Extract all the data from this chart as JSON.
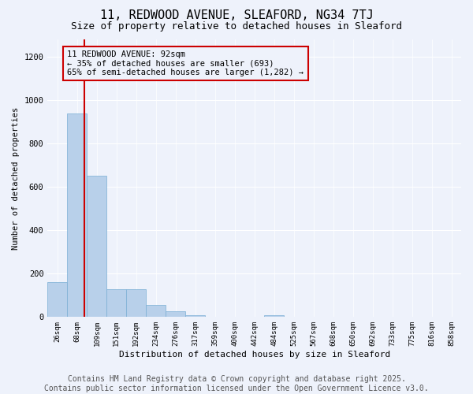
{
  "title": "11, REDWOOD AVENUE, SLEAFORD, NG34 7TJ",
  "subtitle": "Size of property relative to detached houses in Sleaford",
  "xlabel": "Distribution of detached houses by size in Sleaford",
  "ylabel": "Number of detached properties",
  "bin_labels": [
    "26sqm",
    "68sqm",
    "109sqm",
    "151sqm",
    "192sqm",
    "234sqm",
    "276sqm",
    "317sqm",
    "359sqm",
    "400sqm",
    "442sqm",
    "484sqm",
    "525sqm",
    "567sqm",
    "608sqm",
    "650sqm",
    "692sqm",
    "733sqm",
    "775sqm",
    "816sqm",
    "858sqm"
  ],
  "bar_values": [
    160,
    940,
    650,
    130,
    130,
    55,
    25,
    10,
    0,
    0,
    0,
    10,
    0,
    0,
    0,
    0,
    0,
    0,
    0,
    0,
    0
  ],
  "bar_color": "#b8d0ea",
  "bar_edgecolor": "#7aafd4",
  "vline_x": 1.35,
  "vline_color": "#cc0000",
  "annotation_text": "11 REDWOOD AVENUE: 92sqm\n← 35% of detached houses are smaller (693)\n65% of semi-detached houses are larger (1,282) →",
  "annotation_box_edgecolor": "#cc0000",
  "annotation_fontsize": 7.5,
  "ylim": [
    0,
    1280
  ],
  "yticks": [
    0,
    200,
    400,
    600,
    800,
    1000,
    1200
  ],
  "bg_color": "#eef2fb",
  "footer_line1": "Contains HM Land Registry data © Crown copyright and database right 2025.",
  "footer_line2": "Contains public sector information licensed under the Open Government Licence v3.0.",
  "title_fontsize": 11,
  "subtitle_fontsize": 9,
  "footer_fontsize": 7
}
